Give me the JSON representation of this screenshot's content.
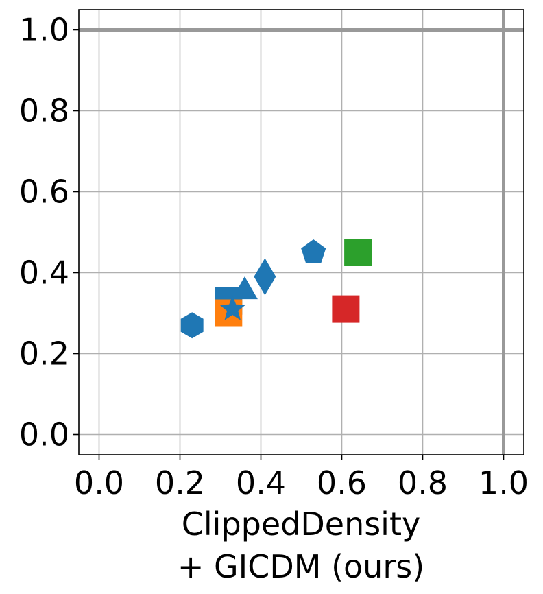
{
  "chart_data": {
    "type": "scatter",
    "title": "",
    "xlabel_lines": [
      "ClippedDensity",
      "+ GICDM (ours)"
    ],
    "ylabel": "",
    "xlim": [
      -0.05,
      1.05
    ],
    "ylim": [
      -0.05,
      1.05
    ],
    "xticks": [
      0.0,
      0.2,
      0.4,
      0.6,
      0.8,
      1.0
    ],
    "yticks": [
      0.0,
      0.2,
      0.4,
      0.6,
      0.8,
      1.0
    ],
    "xtick_labels": [
      "0.0",
      "0.2",
      "0.4",
      "0.6",
      "0.8",
      "1.0"
    ],
    "ytick_labels": [
      "0.0",
      "0.2",
      "0.4",
      "0.6",
      "0.8",
      "1.0"
    ],
    "grid": true,
    "reference_lines": {
      "horizontal": 1.0,
      "vertical": 1.0,
      "color": "#999999"
    },
    "points": [
      {
        "x": 0.23,
        "y": 0.27,
        "marker": "hexagon",
        "color": "#1f77b4"
      },
      {
        "x": 0.32,
        "y": 0.33,
        "marker": "square",
        "color": "#1f77b4"
      },
      {
        "x": 0.36,
        "y": 0.36,
        "marker": "triangle",
        "color": "#1f77b4"
      },
      {
        "x": 0.41,
        "y": 0.39,
        "marker": "diamond",
        "color": "#1f77b4"
      },
      {
        "x": 0.53,
        "y": 0.45,
        "marker": "pentagon",
        "color": "#1f77b4"
      },
      {
        "x": 0.64,
        "y": 0.45,
        "marker": "square",
        "color": "#2ca02c"
      },
      {
        "x": 0.61,
        "y": 0.31,
        "marker": "square",
        "color": "#d62728"
      },
      {
        "x": 0.32,
        "y": 0.3,
        "marker": "square",
        "color": "#ff7f0e"
      },
      {
        "x": 0.33,
        "y": 0.31,
        "marker": "star",
        "color": "#1f77b4"
      }
    ]
  }
}
